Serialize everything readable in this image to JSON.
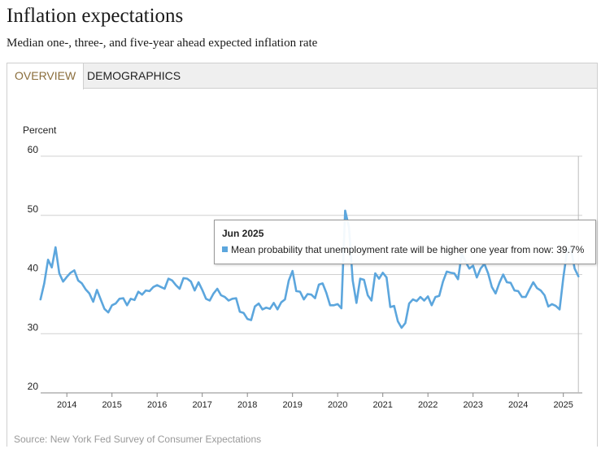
{
  "header": {
    "title": "Inflation expectations",
    "subtitle": "Median one-, three-, and five-year ahead expected inflation rate"
  },
  "tabs": [
    {
      "label": "OVERVIEW",
      "active": true
    },
    {
      "label": "DEMOGRAPHICS",
      "active": false
    }
  ],
  "tooltip": {
    "title": "Jun 2025",
    "series_label": "Mean probability that unemployment rate will be higher one year from now:",
    "value_text": "39.7%"
  },
  "source": "Source: New York Fed Survey of Consumer Expectations",
  "colors": {
    "series": "#5ca6dd",
    "grid": "#d0d0d0",
    "axis": "#888888"
  },
  "chart_data": {
    "type": "line",
    "ylabel": "Percent",
    "ylim": [
      20,
      60
    ],
    "yticks": [
      20,
      30,
      40,
      50,
      60
    ],
    "xlim": [
      2013.42,
      2025.42
    ],
    "xticks": [
      2014,
      2015,
      2016,
      2017,
      2018,
      2019,
      2020,
      2021,
      2022,
      2023,
      2024,
      2025
    ],
    "series": [
      {
        "name": "Mean probability that unemployment rate will be higher one year from now",
        "start": "Jun 2013",
        "frequency": "monthly",
        "values": [
          35.8,
          38.5,
          42.5,
          41.2,
          44.6,
          40.2,
          38.8,
          39.6,
          40.3,
          40.7,
          39.0,
          38.5,
          37.5,
          36.8,
          35.4,
          37.4,
          35.8,
          34.2,
          33.6,
          34.8,
          35.1,
          35.9,
          36.0,
          34.8,
          35.9,
          35.7,
          37.1,
          36.6,
          37.3,
          37.2,
          37.9,
          38.2,
          37.9,
          37.6,
          39.3,
          39.0,
          38.2,
          37.6,
          39.4,
          39.3,
          38.8,
          37.3,
          38.7,
          37.4,
          35.9,
          35.6,
          36.8,
          37.6,
          36.5,
          36.2,
          35.6,
          35.9,
          36.0,
          33.7,
          33.5,
          32.5,
          32.3,
          34.6,
          35.1,
          34.1,
          34.4,
          34.2,
          35.2,
          34.1,
          35.3,
          35.8,
          39.0,
          40.6,
          37.2,
          37.1,
          35.8,
          36.7,
          36.6,
          36.0,
          38.3,
          38.5,
          36.9,
          34.8,
          34.8,
          35.0,
          34.3,
          50.8,
          48.0,
          39.0,
          35.2,
          39.3,
          39.1,
          36.5,
          35.6,
          40.2,
          39.3,
          40.3,
          39.5,
          34.5,
          34.7,
          32.1,
          31.0,
          31.8,
          35.1,
          35.8,
          35.5,
          36.2,
          35.6,
          36.3,
          34.8,
          36.2,
          36.4,
          38.8,
          40.5,
          40.3,
          40.2,
          39.2,
          43.5,
          42.2,
          41.0,
          41.5,
          39.5,
          41.0,
          41.8,
          40.2,
          37.9,
          36.8,
          38.6,
          40.0,
          38.7,
          38.6,
          37.3,
          37.2,
          36.2,
          36.2,
          37.5,
          38.7,
          37.7,
          37.3,
          36.5,
          34.6,
          35.0,
          34.7,
          34.1,
          39.5,
          44.0,
          44.4,
          41.0,
          39.7
        ]
      }
    ],
    "highlight": {
      "label": "Jun 2025",
      "value": 39.7
    }
  }
}
